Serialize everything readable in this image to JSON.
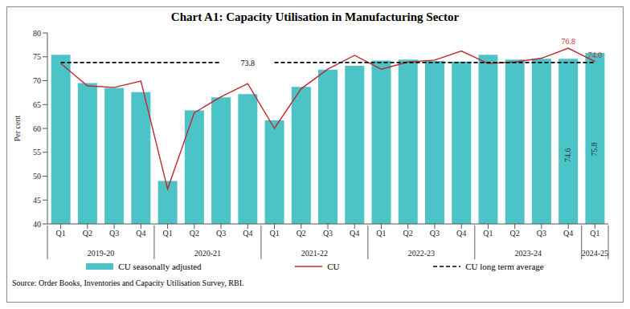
{
  "chart_data": {
    "type": "bar",
    "title": "Chart A1: Capacity Utilisation in Manufacturing Sector",
    "y_label": "Per cent",
    "source": "Source: Order Books, Inventories and Capacity Utilisation Survey, RBI.",
    "categories": [
      "Q1",
      "Q2",
      "Q3",
      "Q4",
      "Q1",
      "Q2",
      "Q3",
      "Q4",
      "Q1",
      "Q2",
      "Q3",
      "Q4",
      "Q1",
      "Q2",
      "Q3",
      "Q4",
      "Q1",
      "Q2",
      "Q3",
      "Q4",
      "Q1"
    ],
    "x_groups": [
      {
        "label": "2019-20",
        "size": 4
      },
      {
        "label": "2020-21",
        "size": 4
      },
      {
        "label": "2021-22",
        "size": 4
      },
      {
        "label": "2022-23",
        "size": 4
      },
      {
        "label": "2023-24",
        "size": 4
      },
      {
        "label": "2024-25",
        "size": 1
      }
    ],
    "series": [
      {
        "name": "CU seasonally adjusted",
        "type": "bar",
        "color": "#4cc3c6",
        "values": [
          75.4,
          69.5,
          68.5,
          67.6,
          49.0,
          63.8,
          66.5,
          67.2,
          61.7,
          68.7,
          72.3,
          73.1,
          74.2,
          74.4,
          74.1,
          74.0,
          75.4,
          74.4,
          74.6,
          74.6,
          75.8
        ]
      },
      {
        "name": "CU",
        "type": "line",
        "color": "#c0272d",
        "line_style": "solid",
        "values": [
          73.6,
          68.9,
          68.6,
          69.9,
          47.3,
          63.3,
          66.6,
          69.4,
          60.0,
          68.3,
          72.4,
          75.3,
          72.4,
          73.9,
          74.3,
          76.2,
          73.6,
          73.9,
          74.7,
          76.8,
          74.0
        ]
      },
      {
        "name": "CU long term average",
        "type": "line",
        "color": "#000000",
        "line_style": "dashed",
        "values": [
          73.8,
          73.8,
          73.8,
          73.8,
          73.8,
          73.8,
          73.8,
          null,
          73.8,
          73.8,
          73.8,
          73.8,
          73.8,
          73.8,
          73.8,
          73.8,
          73.8,
          73.8,
          73.8,
          73.8,
          73.8
        ]
      }
    ],
    "annotations": [
      {
        "text": "73.8",
        "series": "CU long term average",
        "x": 7,
        "y": 73.8
      },
      {
        "text": "76.8",
        "series": "CU",
        "x": 19,
        "y": 76.8
      },
      {
        "text": "74.0",
        "series": "CU",
        "x": 20,
        "y": 74.0
      },
      {
        "text": "74.6",
        "series": "CU seasonally adjusted",
        "x": 19,
        "y": 74.6
      },
      {
        "text": "75.8",
        "series": "CU seasonally adjusted",
        "x": 20,
        "y": 75.8
      }
    ],
    "ylim": [
      40,
      80
    ],
    "yticks": [
      40,
      45,
      50,
      55,
      60,
      65,
      70,
      75,
      80
    ],
    "grid": false,
    "legend": "bottom"
  }
}
